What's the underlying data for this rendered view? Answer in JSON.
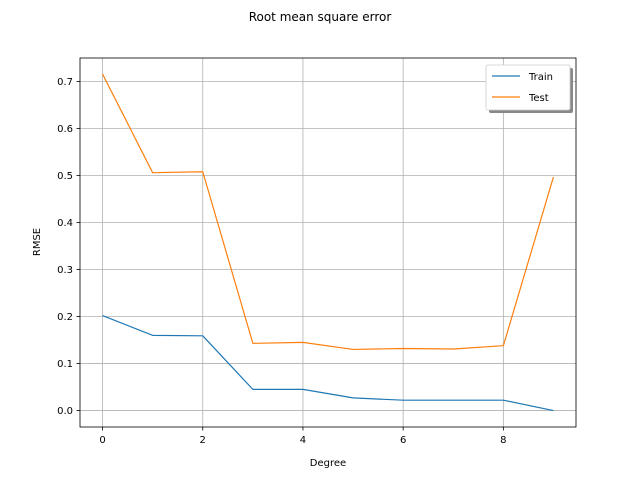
{
  "chart_data": {
    "type": "line",
    "title": "Root mean square error",
    "xlabel": "Degree",
    "ylabel": "RMSE",
    "x": [
      0,
      1,
      2,
      3,
      4,
      5,
      6,
      7,
      8,
      9
    ],
    "xlim": [
      -0.45,
      9.45
    ],
    "ylim": [
      -0.035,
      0.75
    ],
    "xticks": [
      0,
      2,
      4,
      6,
      8
    ],
    "xtick_labels": [
      "0",
      "2",
      "4",
      "6",
      "8"
    ],
    "yticks": [
      0.0,
      0.1,
      0.2,
      0.3,
      0.4,
      0.5,
      0.6,
      0.7
    ],
    "ytick_labels": [
      "0.0",
      "0.1",
      "0.2",
      "0.3",
      "0.4",
      "0.5",
      "0.6",
      "0.7"
    ],
    "grid": true,
    "legend_position": "top-right",
    "series": [
      {
        "name": "Train",
        "color": "#1f77b4",
        "values": [
          0.202,
          0.16,
          0.159,
          0.045,
          0.045,
          0.027,
          0.022,
          0.022,
          0.022,
          0.0
        ]
      },
      {
        "name": "Test",
        "color": "#ff7f0e",
        "values": [
          0.716,
          0.506,
          0.508,
          0.143,
          0.145,
          0.13,
          0.132,
          0.131,
          0.138,
          0.497
        ]
      }
    ]
  }
}
